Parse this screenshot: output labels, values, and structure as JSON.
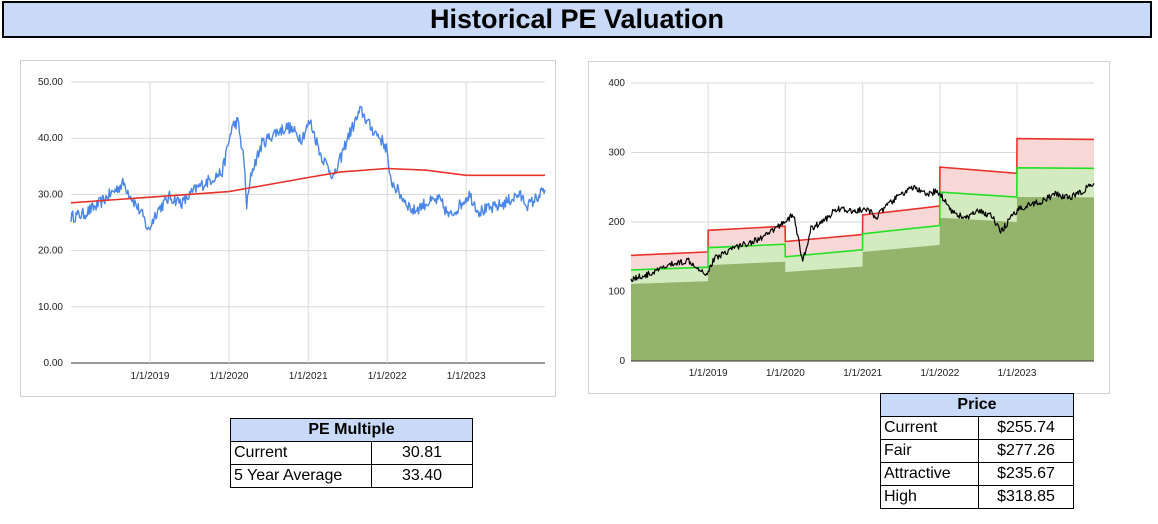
{
  "title": "Historical PE Valuation",
  "pe_table": {
    "header": "PE Multiple",
    "rows": [
      {
        "label": "Current",
        "value": "30.81"
      },
      {
        "label": "5 Year Average",
        "value": "33.40"
      }
    ]
  },
  "price_table": {
    "header": "Price",
    "rows": [
      {
        "label": "Current",
        "value": "$255.74"
      },
      {
        "label": "Fair",
        "value": "$277.26"
      },
      {
        "label": "Attractive",
        "value": "$235.67"
      },
      {
        "label": "High",
        "value": "$318.85"
      }
    ]
  },
  "chart_data": [
    {
      "type": "line",
      "title": "",
      "xlabel": "",
      "ylabel": "",
      "x_range": [
        "2018-01-01",
        "2023-12-31"
      ],
      "ylim": [
        0,
        50
      ],
      "y_ticks": [
        "0.00",
        "10.00",
        "20.00",
        "30.00",
        "40.00",
        "50.00"
      ],
      "x_ticks": [
        "1/1/2019",
        "1/1/2020",
        "1/1/2021",
        "1/1/2022",
        "1/1/2023"
      ],
      "grid": true,
      "colors": {
        "pe": "#4a86e8",
        "average": "#e8322a"
      },
      "series": [
        {
          "role": "pe",
          "points": [
            [
              "2018-01-01",
              26
            ],
            [
              "2018-03-01",
              26.5
            ],
            [
              "2018-05-01",
              28
            ],
            [
              "2018-07-01",
              30
            ],
            [
              "2018-09-01",
              32
            ],
            [
              "2018-10-15",
              29
            ],
            [
              "2018-12-01",
              26
            ],
            [
              "2018-12-24",
              23.5
            ],
            [
              "2019-02-01",
              27
            ],
            [
              "2019-04-01",
              29.5
            ],
            [
              "2019-06-01",
              28.5
            ],
            [
              "2019-08-01",
              31
            ],
            [
              "2019-10-01",
              32.5
            ],
            [
              "2019-12-01",
              34
            ],
            [
              "2020-01-15",
              42
            ],
            [
              "2020-02-10",
              43
            ],
            [
              "2020-03-10",
              36
            ],
            [
              "2020-03-23",
              28
            ],
            [
              "2020-04-15",
              34
            ],
            [
              "2020-06-01",
              39
            ],
            [
              "2020-08-01",
              41
            ],
            [
              "2020-10-01",
              42
            ],
            [
              "2020-12-01",
              40
            ],
            [
              "2021-01-10",
              43
            ],
            [
              "2021-03-01",
              37
            ],
            [
              "2021-05-01",
              33
            ],
            [
              "2021-07-01",
              40
            ],
            [
              "2021-09-01",
              45
            ],
            [
              "2021-10-15",
              42
            ],
            [
              "2021-12-01",
              40
            ],
            [
              "2022-01-01",
              38
            ],
            [
              "2022-01-10",
              33
            ],
            [
              "2022-03-01",
              30
            ],
            [
              "2022-05-01",
              27
            ],
            [
              "2022-07-01",
              28.5
            ],
            [
              "2022-09-01",
              29
            ],
            [
              "2022-10-15",
              26
            ],
            [
              "2022-12-01",
              28
            ],
            [
              "2023-01-15",
              30
            ],
            [
              "2023-03-01",
              27
            ],
            [
              "2023-05-01",
              27.5
            ],
            [
              "2023-07-01",
              28.5
            ],
            [
              "2023-09-01",
              30
            ],
            [
              "2023-10-15",
              28
            ],
            [
              "2023-12-31",
              30.81
            ]
          ]
        },
        {
          "role": "average",
          "points": [
            [
              "2018-01-01",
              28.5
            ],
            [
              "2019-01-01",
              29.5
            ],
            [
              "2020-01-01",
              30.5
            ],
            [
              "2021-01-01",
              33
            ],
            [
              "2021-06-01",
              34
            ],
            [
              "2022-01-01",
              34.6
            ],
            [
              "2022-07-01",
              34.3
            ],
            [
              "2023-01-01",
              33.4
            ],
            [
              "2023-12-31",
              33.4
            ]
          ]
        }
      ]
    },
    {
      "type": "area",
      "title": "",
      "xlabel": "",
      "ylabel": "",
      "x_range": [
        "2018-01-01",
        "2023-12-31"
      ],
      "ylim": [
        0,
        400
      ],
      "y_ticks": [
        "0",
        "100",
        "200",
        "300",
        "400"
      ],
      "x_ticks": [
        "1/1/2019",
        "1/1/2020",
        "1/1/2021",
        "1/1/2022",
        "1/1/2023"
      ],
      "grid": true,
      "colors": {
        "price": "#000000",
        "high": "#e8322a",
        "fair": "#22e022",
        "attractive_fill": "#93b46a",
        "fair_fill": "#d4eac0",
        "high_fill": "#f8d7d7"
      },
      "series": [
        {
          "role": "high",
          "points": [
            [
              "2018-01-01",
              152
            ],
            [
              "2018-12-31",
              157
            ],
            [
              "2019-01-01",
              188
            ],
            [
              "2019-12-31",
              194
            ],
            [
              "2020-01-01",
              172
            ],
            [
              "2020-12-31",
              182
            ],
            [
              "2021-01-01",
              210
            ],
            [
              "2021-12-31",
              223
            ],
            [
              "2022-01-01",
              279
            ],
            [
              "2022-12-31",
              270
            ],
            [
              "2023-01-01",
              320
            ],
            [
              "2023-12-31",
              318.85
            ]
          ]
        },
        {
          "role": "fair",
          "points": [
            [
              "2018-01-01",
              131
            ],
            [
              "2018-12-31",
              135
            ],
            [
              "2019-01-01",
              163
            ],
            [
              "2019-12-31",
              168
            ],
            [
              "2020-01-01",
              150
            ],
            [
              "2020-12-31",
              160
            ],
            [
              "2021-01-01",
              183
            ],
            [
              "2021-12-31",
              195
            ],
            [
              "2022-01-01",
              243
            ],
            [
              "2022-12-31",
              236
            ],
            [
              "2023-01-01",
              278
            ],
            [
              "2023-12-31",
              277.26
            ]
          ]
        },
        {
          "role": "attractive",
          "points": [
            [
              "2018-01-01",
              111
            ],
            [
              "2018-12-31",
              115
            ],
            [
              "2019-01-01",
              138
            ],
            [
              "2019-12-31",
              143
            ],
            [
              "2020-01-01",
              128
            ],
            [
              "2020-12-31",
              136
            ],
            [
              "2021-01-01",
              157
            ],
            [
              "2021-12-31",
              167
            ],
            [
              "2022-01-01",
              206
            ],
            [
              "2022-12-31",
              200
            ],
            [
              "2023-01-01",
              236
            ],
            [
              "2023-12-31",
              235.67
            ]
          ]
        },
        {
          "role": "price",
          "points": [
            [
              "2018-01-01",
              118
            ],
            [
              "2018-04-01",
              125
            ],
            [
              "2018-07-01",
              138
            ],
            [
              "2018-10-01",
              145
            ],
            [
              "2018-12-24",
              125
            ],
            [
              "2019-02-01",
              148
            ],
            [
              "2019-05-01",
              163
            ],
            [
              "2019-08-01",
              172
            ],
            [
              "2019-10-01",
              180
            ],
            [
              "2020-01-15",
              205
            ],
            [
              "2020-02-10",
              210
            ],
            [
              "2020-03-23",
              142
            ],
            [
              "2020-05-01",
              190
            ],
            [
              "2020-07-15",
              205
            ],
            [
              "2020-09-01",
              220
            ],
            [
              "2020-11-01",
              215
            ],
            [
              "2021-01-15",
              218
            ],
            [
              "2021-03-10",
              208
            ],
            [
              "2021-05-01",
              225
            ],
            [
              "2021-07-01",
              240
            ],
            [
              "2021-09-01",
              250
            ],
            [
              "2021-11-01",
              238
            ],
            [
              "2021-12-15",
              245
            ],
            [
              "2022-01-15",
              235
            ],
            [
              "2022-03-01",
              215
            ],
            [
              "2022-05-01",
              205
            ],
            [
              "2022-07-01",
              215
            ],
            [
              "2022-09-01",
              210
            ],
            [
              "2022-10-15",
              185
            ],
            [
              "2022-12-01",
              205
            ],
            [
              "2023-01-15",
              220
            ],
            [
              "2023-03-01",
              225
            ],
            [
              "2023-05-01",
              230
            ],
            [
              "2023-07-01",
              240
            ],
            [
              "2023-09-01",
              235
            ],
            [
              "2023-10-15",
              240
            ],
            [
              "2023-12-31",
              255.74
            ]
          ]
        }
      ]
    }
  ]
}
